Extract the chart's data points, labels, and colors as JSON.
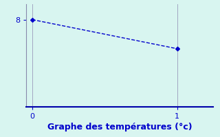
{
  "x": [
    0,
    1
  ],
  "y": [
    8,
    6.5
  ],
  "xlim": [
    -0.04,
    1.25
  ],
  "ylim": [
    3.5,
    8.8
  ],
  "xticks": [
    0,
    1
  ],
  "yticks": [
    8
  ],
  "xlabel": "Graphe des températures (°c)",
  "line_color": "#0000cc",
  "marker": "D",
  "marker_size": 3,
  "background_color": "#d8f5f0",
  "spine_color": "#8888aa",
  "bottom_spine_color": "#0000aa",
  "title_color": "#0000cc",
  "title_fontsize": 9,
  "tick_label_color": "#0000cc",
  "tick_fontsize": 8,
  "vgrid_color": "#9999bb",
  "vgrid_lw": 0.6
}
